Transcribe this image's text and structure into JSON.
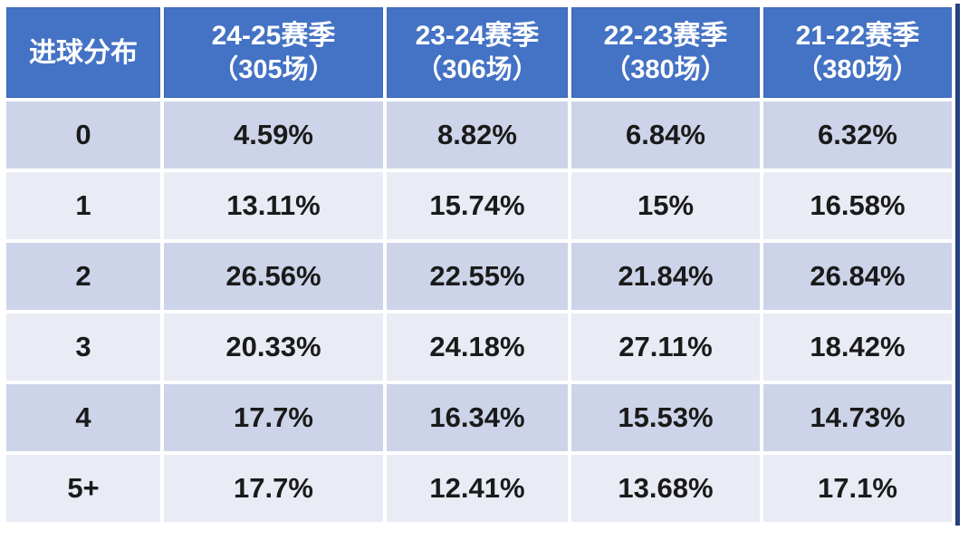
{
  "table": {
    "corner_header": "进球分布",
    "columns": [
      {
        "title": "24-25赛季",
        "subtitle": "（305场）"
      },
      {
        "title": "23-24赛季",
        "subtitle": "（306场）"
      },
      {
        "title": "22-23赛季",
        "subtitle": "（380场）"
      },
      {
        "title": "21-22赛季",
        "subtitle": "（380场）"
      }
    ],
    "rows": [
      {
        "label": "0",
        "values": [
          "4.59%",
          "8.82%",
          "6.84%",
          "6.32%"
        ]
      },
      {
        "label": "1",
        "values": [
          "13.11%",
          "15.74%",
          "15%",
          "16.58%"
        ]
      },
      {
        "label": "2",
        "values": [
          "26.56%",
          "22.55%",
          "21.84%",
          "26.84%"
        ]
      },
      {
        "label": "3",
        "values": [
          "20.33%",
          "24.18%",
          "27.11%",
          "18.42%"
        ]
      },
      {
        "label": "4",
        "values": [
          "17.7%",
          "16.34%",
          "15.53%",
          "14.73%"
        ]
      },
      {
        "label": "5+",
        "values": [
          "17.7%",
          "12.41%",
          "13.68%",
          "17.1%"
        ]
      }
    ]
  },
  "colors": {
    "header_blue": "#4472C4",
    "band_dark": "#CDD4E9",
    "band_light": "#E9EBF5",
    "outer_right_border": "#24407E",
    "cell_gap": "#FFFFFF",
    "body_text": "#1A1A1A",
    "header_text": "#FFFFFF"
  },
  "chart_data": {
    "type": "table",
    "title": "进球分布",
    "unit": "%",
    "categories": [
      "0",
      "1",
      "2",
      "3",
      "4",
      "5+"
    ],
    "series": [
      {
        "name": "24-25赛季（305场）",
        "matches": 305,
        "values": [
          4.59,
          13.11,
          26.56,
          20.33,
          17.7,
          17.7
        ]
      },
      {
        "name": "23-24赛季（306场）",
        "matches": 306,
        "values": [
          8.82,
          15.74,
          22.55,
          24.18,
          16.34,
          12.41
        ]
      },
      {
        "name": "22-23赛季（380场）",
        "matches": 380,
        "values": [
          6.84,
          15.0,
          21.84,
          27.11,
          15.53,
          13.68
        ]
      },
      {
        "name": "21-22赛季（380场）",
        "matches": 380,
        "values": [
          6.32,
          16.58,
          26.84,
          18.42,
          14.73,
          17.1
        ]
      }
    ],
    "layout": {
      "header_row": true,
      "banded_rows": true,
      "legend_position": "none",
      "grid": "white-gaps"
    }
  }
}
